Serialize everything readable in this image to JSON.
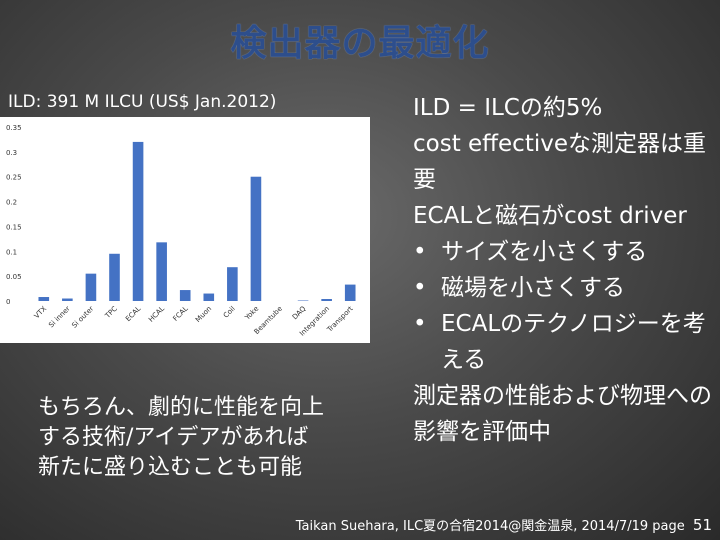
{
  "slide": {
    "title": "検出器の最適化",
    "subtitle": "ILD: 391 M ILCU (US$ Jan.2012)",
    "left_note": [
      "もちろん、劇的に性能を向上",
      "する技術/アイデアがあれば",
      "新たに盛り込むことも可能"
    ],
    "right_text": {
      "line1": "ILD = ILCの約5%",
      "line2": "cost effectiveな測定器は重要",
      "line3": "ECALと磁石がcost driver",
      "bullets": [
        "サイズを小さくする",
        "磁場を小さくする",
        "ECALのテクノロジーを考える"
      ],
      "bullet_marker": "•",
      "line4": "測定器の性能および物理への影響を評価中"
    },
    "footer": {
      "text": "Taikan Suehara, ILC夏の合宿2014@関金温泉, 2014/7/19",
      "page_label": "page",
      "page_number": "51"
    }
  },
  "chart_data": {
    "type": "bar",
    "categories": [
      "VTX",
      "Si inner",
      "Si outer",
      "TPC",
      "ECAL",
      "HCAL",
      "FCAL",
      "Muon",
      "Coil",
      "Yoke",
      "Beamtube",
      "DAQ",
      "Integration",
      "Transport"
    ],
    "values": [
      0.008,
      0.005,
      0.055,
      0.095,
      0.32,
      0.118,
      0.022,
      0.015,
      0.068,
      0.25,
      0.0,
      0.001,
      0.004,
      0.033
    ],
    "ylim": [
      0,
      0.35
    ],
    "yticks": [
      "0",
      "0.05",
      "0.1",
      "0.15",
      "0.2",
      "0.25",
      "0.3",
      "0.35"
    ],
    "ytick_values": [
      0,
      0.05,
      0.1,
      0.15,
      0.2,
      0.25,
      0.3,
      0.35
    ],
    "bar_color": "#4472c4",
    "grid": false
  }
}
